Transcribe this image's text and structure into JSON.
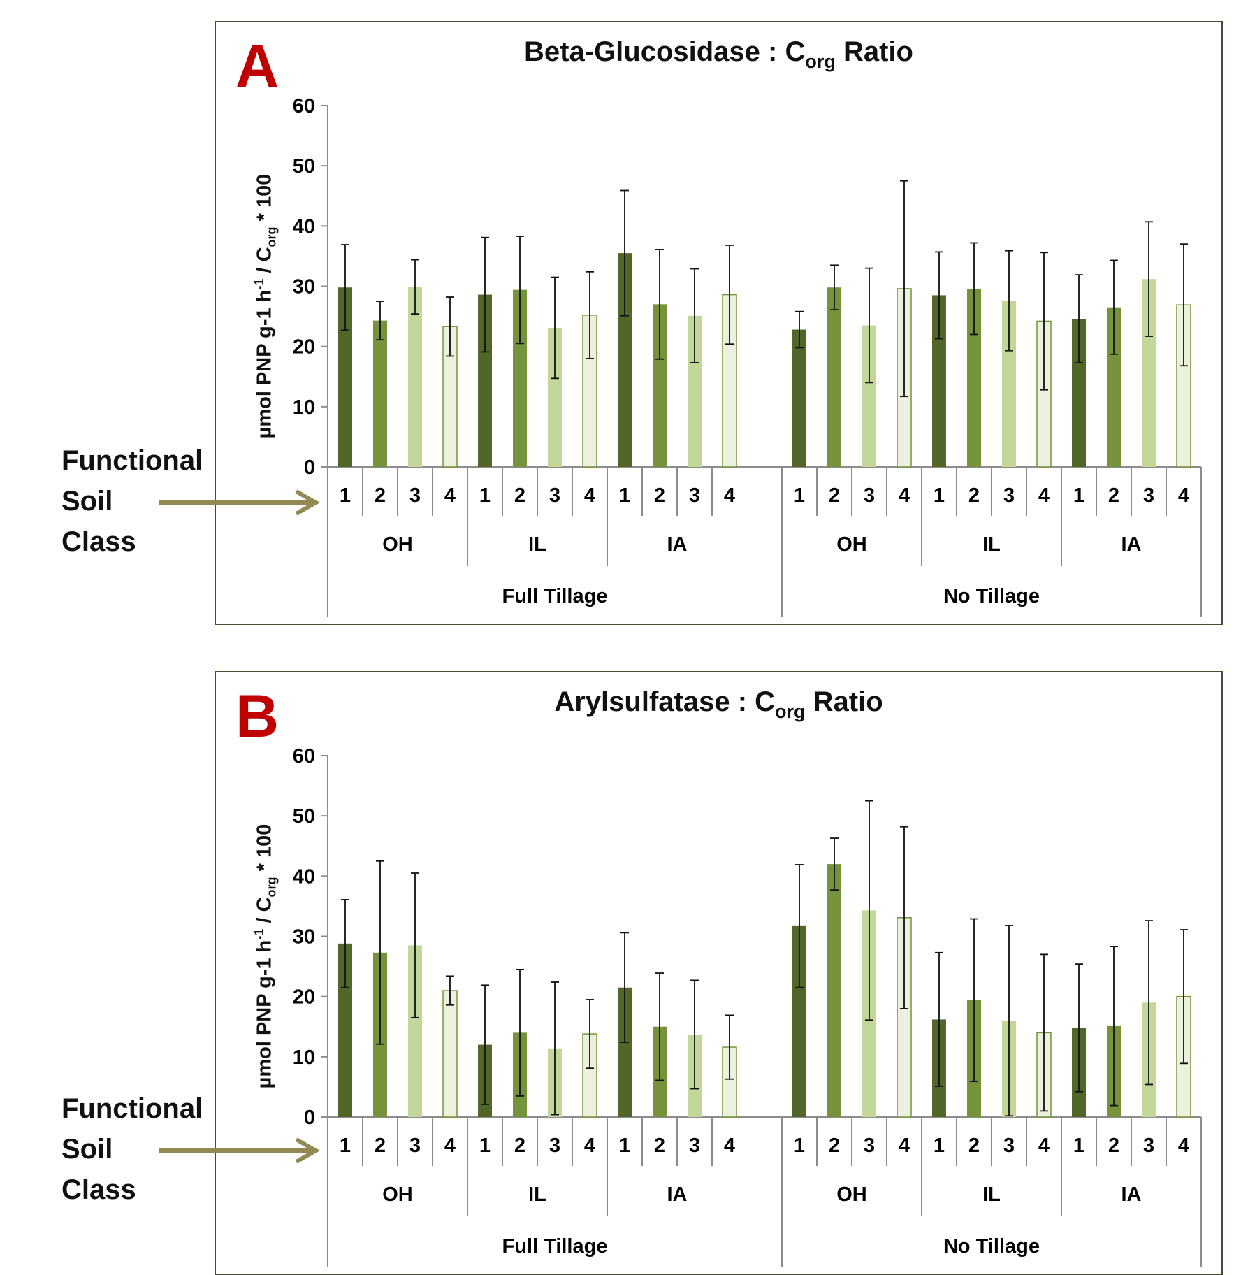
{
  "side_label": {
    "line1": "Functional",
    "line2": "Soil",
    "line3": "Class"
  },
  "colors": {
    "class1": "#536629",
    "class2": "#76933c",
    "class3": "#c4d79b",
    "class4": "#ebf1de",
    "class4_border": "#76933c",
    "arrow": "#938953",
    "letter": "#c00000"
  },
  "chart_data": [
    {
      "panel": "A",
      "type": "bar",
      "title_main": "Beta-Glucosidase : C",
      "title_sub": "org",
      "title_tail": " Ratio",
      "ylabel_main": "µmol PNP g-1 h",
      "ylabel_sup": "-1",
      "ylabel_mid": " / C",
      "ylabel_sub": "org",
      "ylabel_tail": " * 100",
      "ylim": [
        0,
        60
      ],
      "yticks": [
        "0",
        "10",
        "20",
        "30",
        "40",
        "50",
        "60"
      ],
      "tillage": [
        "Full Tillage",
        "No Tillage"
      ],
      "sites": [
        "OH",
        "IL",
        "IA"
      ],
      "classes": [
        "1",
        "2",
        "3",
        "4"
      ],
      "values": [
        29.8,
        24.3,
        29.9,
        23.3,
        28.6,
        29.4,
        23.1,
        25.2,
        35.5,
        27.0,
        25.1,
        28.6,
        22.8,
        29.8,
        23.5,
        29.6,
        28.5,
        29.6,
        27.6,
        24.2,
        24.6,
        26.5,
        31.2,
        26.9
      ],
      "errors": [
        7.1,
        3.2,
        4.5,
        4.9,
        9.5,
        8.9,
        8.4,
        7.2,
        10.4,
        9.1,
        7.8,
        8.2,
        3.0,
        3.7,
        9.5,
        17.9,
        7.2,
        7.6,
        8.3,
        11.4,
        7.3,
        7.8,
        9.5,
        10.1
      ]
    },
    {
      "panel": "B",
      "type": "bar",
      "title_main": "Arylsulfatase : C",
      "title_sub": "org",
      "title_tail": " Ratio",
      "ylabel_main": "µmol PNP g-1 h",
      "ylabel_sup": "-1",
      "ylabel_mid": " / C",
      "ylabel_sub": "org",
      "ylabel_tail": " * 100",
      "ylim": [
        0,
        60
      ],
      "yticks": [
        "0",
        "10",
        "20",
        "30",
        "40",
        "50",
        "60"
      ],
      "tillage": [
        "Full Tillage",
        "No Tillage"
      ],
      "sites": [
        "OH",
        "IL",
        "IA"
      ],
      "classes": [
        "1",
        "2",
        "3",
        "4"
      ],
      "values": [
        28.8,
        27.3,
        28.5,
        21.0,
        12.0,
        14.0,
        11.4,
        13.8,
        21.5,
        15.0,
        13.7,
        11.6,
        31.7,
        42.0,
        34.3,
        33.1,
        16.2,
        19.4,
        16.0,
        14.0,
        14.8,
        15.1,
        19.0,
        20.0
      ],
      "errors": [
        7.3,
        15.2,
        12.0,
        2.4,
        9.9,
        10.5,
        11.0,
        5.7,
        9.1,
        8.9,
        9.0,
        5.3,
        10.2,
        4.3,
        18.2,
        15.1,
        11.1,
        13.5,
        15.8,
        13.0,
        10.6,
        13.2,
        13.6,
        11.1
      ]
    }
  ]
}
